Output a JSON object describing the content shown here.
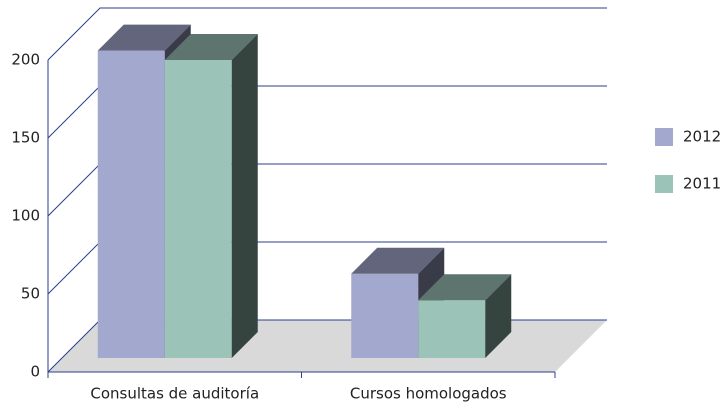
{
  "chart_data": {
    "type": "bar3d",
    "categories": [
      "Consultas de auditoría",
      "Cursos homologados"
    ],
    "series": [
      {
        "name": "2012",
        "color": "#a3a8cf",
        "values": [
          197,
          54
        ]
      },
      {
        "name": "2011",
        "color": "#9bc3b8",
        "values": [
          191,
          37
        ]
      }
    ],
    "ylim": [
      0,
      200
    ],
    "yticks": [
      0,
      50,
      100,
      150,
      200
    ],
    "grid": true,
    "legend": "right"
  }
}
